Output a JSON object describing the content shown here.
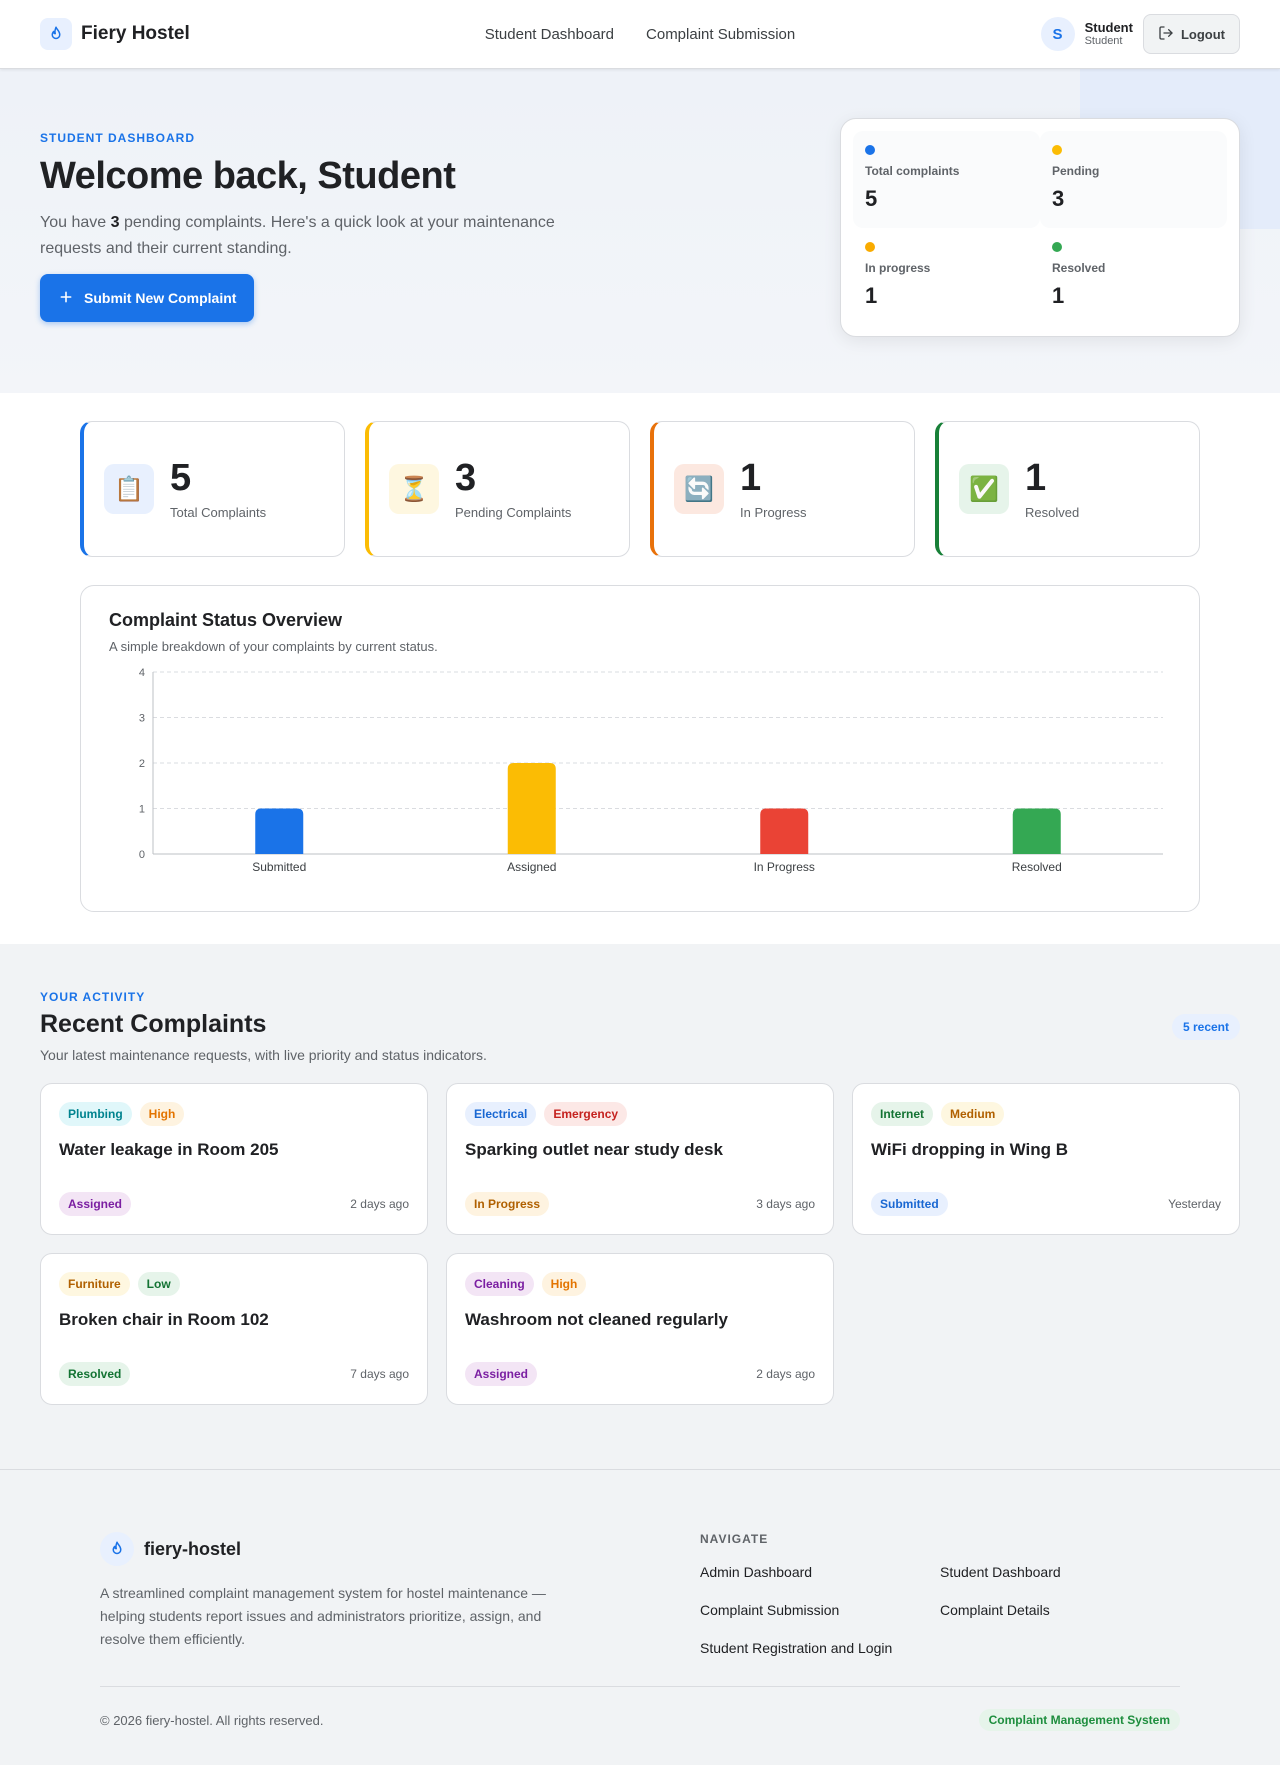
{
  "header": {
    "brand": "Fiery Hostel",
    "nav": [
      "Student Dashboard",
      "Complaint Submission"
    ],
    "avatar_initial": "S",
    "user_name": "Student",
    "user_role": "Student",
    "logout_label": "Logout"
  },
  "hero": {
    "eyebrow": "STUDENT DASHBOARD",
    "title": "Welcome back, Student",
    "sub_pre": "You have ",
    "pending_count": "3",
    "sub_post": " pending complaints. Here's a quick look at your maintenance requests and their current standing.",
    "cta_label": "Submit New Complaint",
    "summary": [
      {
        "label": "Total complaints",
        "value": "5",
        "color": "#1a73e8"
      },
      {
        "label": "Pending",
        "value": "3",
        "color": "#fbbc04"
      },
      {
        "label": "In progress",
        "value": "1",
        "color": "#f9ab00"
      },
      {
        "label": "Resolved",
        "value": "1",
        "color": "#34a853"
      }
    ]
  },
  "stats": [
    {
      "value": "5",
      "label": "Total Complaints",
      "icon": "clipboard-icon",
      "glyph": "📋",
      "accent": "#1a73e8",
      "icon_bg": "#e8f0fe"
    },
    {
      "value": "3",
      "label": "Pending Complaints",
      "icon": "hourglass-icon",
      "glyph": "⏳",
      "accent": "#fbbc04",
      "icon_bg": "#fef7e0"
    },
    {
      "value": "1",
      "label": "In Progress",
      "icon": "refresh-icon",
      "glyph": "🔄",
      "accent": "#e8710a",
      "icon_bg": "#fce8e0"
    },
    {
      "value": "1",
      "label": "Resolved",
      "icon": "check-icon",
      "glyph": "✅",
      "accent": "#188038",
      "icon_bg": "#e6f4ea"
    }
  ],
  "chart": {
    "title": "Complaint Status Overview",
    "subtitle": "A simple breakdown of your complaints by current status."
  },
  "chart_data": {
    "type": "bar",
    "categories": [
      "Submitted",
      "Assigned",
      "In Progress",
      "Resolved"
    ],
    "values": [
      1,
      2,
      1,
      1
    ],
    "colors": [
      "#1a73e8",
      "#fbbc04",
      "#ea4335",
      "#34a853"
    ],
    "yticks": [
      0,
      1,
      2,
      3,
      4
    ],
    "ylim": [
      0,
      4
    ],
    "grid": true
  },
  "recent": {
    "eyebrow": "YOUR ACTIVITY",
    "title": "Recent Complaints",
    "subtitle": "Your latest maintenance requests, with live priority and status indicators.",
    "count_label": "5 recent",
    "cards": [
      {
        "category": "Plumbing",
        "cat_bg": "#e0f7fa",
        "cat_fg": "#00838f",
        "priority": "High",
        "pri_bg": "#fef3e0",
        "pri_fg": "#e37400",
        "title": "Water leakage in Room 205",
        "status": "Assigned",
        "st_bg": "#f3e5f5",
        "st_fg": "#7b1fa2",
        "time": "2 days ago"
      },
      {
        "category": "Electrical",
        "cat_bg": "#e8f0fe",
        "cat_fg": "#1967d2",
        "priority": "Emergency",
        "pri_bg": "#fce8e6",
        "pri_fg": "#c5221f",
        "title": "Sparking outlet near study desk",
        "status": "In Progress",
        "st_bg": "#fef3e0",
        "st_fg": "#b06000",
        "time": "3 days ago"
      },
      {
        "category": "Internet",
        "cat_bg": "#e6f4ea",
        "cat_fg": "#137333",
        "priority": "Medium",
        "pri_bg": "#fef7e0",
        "pri_fg": "#b06000",
        "title": "WiFi dropping in Wing B",
        "status": "Submitted",
        "st_bg": "#e8f0fe",
        "st_fg": "#1967d2",
        "time": "Yesterday"
      },
      {
        "category": "Furniture",
        "cat_bg": "#fef7e0",
        "cat_fg": "#b06000",
        "priority": "Low",
        "pri_bg": "#e6f4ea",
        "pri_fg": "#137333",
        "title": "Broken chair in Room 102",
        "status": "Resolved",
        "st_bg": "#e6f4ea",
        "st_fg": "#137333",
        "time": "7 days ago"
      },
      {
        "category": "Cleaning",
        "cat_bg": "#f3e5f5",
        "cat_fg": "#7b1fa2",
        "priority": "High",
        "pri_bg": "#fef3e0",
        "pri_fg": "#e37400",
        "title": "Washroom not cleaned regularly",
        "status": "Assigned",
        "st_bg": "#f3e5f5",
        "st_fg": "#7b1fa2",
        "time": "2 days ago"
      }
    ]
  },
  "footer": {
    "brand": "fiery-hostel",
    "description": "A streamlined complaint management system for hostel maintenance — helping students report issues and administrators prioritize, assign, and resolve them efficiently.",
    "nav_heading": "NAVIGATE",
    "links": [
      "Admin Dashboard",
      "Student Dashboard",
      "Complaint Submission",
      "Complaint Details",
      "Student Registration and Login"
    ],
    "copyright": "© 2026 fiery-hostel. All rights reserved.",
    "badge": "Complaint Management System"
  }
}
